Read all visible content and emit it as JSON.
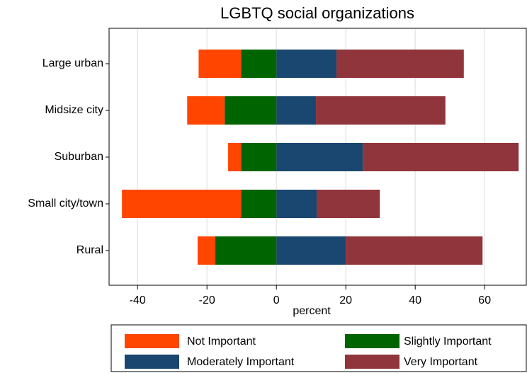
{
  "chart_data": {
    "type": "bar",
    "title": "LGBTQ social organizations",
    "xlabel": "percent",
    "categories": [
      "Large urban",
      "Midsize city",
      "Suburban",
      "Small city/town",
      "Rural"
    ],
    "series": [
      {
        "name": "Not Important",
        "color": "#ff4500",
        "values": [
          -12.2,
          -10.8,
          -3.7,
          -34.3,
          -5.1
        ]
      },
      {
        "name": "Slightly Important",
        "color": "#006400",
        "values": [
          -10.2,
          -14.9,
          -10.2,
          -10.2,
          -17.6
        ]
      },
      {
        "name": "Moderately Important",
        "color": "#1a476f",
        "values": [
          17.3,
          11.4,
          24.9,
          11.6,
          20.0
        ]
      },
      {
        "name": "Very Important",
        "color": "#90353b",
        "values": [
          36.7,
          37.3,
          44.9,
          18.2,
          39.4
        ]
      }
    ],
    "xlim": [
      -48.2,
      72
    ],
    "xticks": [
      -40,
      -20,
      0,
      20,
      40,
      60
    ],
    "grid": true
  }
}
